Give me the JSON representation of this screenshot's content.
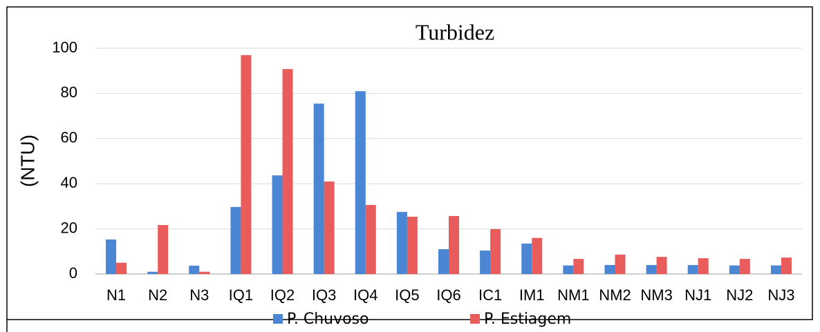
{
  "chart_data": {
    "type": "bar",
    "title": "Turbidez",
    "y_label": "(NTU)",
    "categories": [
      "N1",
      "N2",
      "N3",
      "IQ1",
      "IQ2",
      "IQ3",
      "IQ4",
      "IQ5",
      "IQ6",
      "IC1",
      "IM1",
      "NM1",
      "NM2",
      "NM3",
      "NJ1",
      "NJ2",
      "NJ3"
    ],
    "series": [
      {
        "name": "P. Chuvoso",
        "color": "#4a86d4",
        "values": [
          15.3,
          1,
          3.7,
          29.7,
          43.7,
          75.5,
          81,
          27.5,
          11,
          10.4,
          13.5,
          3.8,
          4,
          4,
          4,
          3.8,
          3.8
        ]
      },
      {
        "name": "P. Estiagem",
        "color": "#e85c5c",
        "values": [
          5,
          21.7,
          1,
          97,
          90.8,
          41,
          30.6,
          25.4,
          25.7,
          19.9,
          16,
          6.7,
          8.6,
          7.6,
          7,
          6.7,
          7.3
        ]
      }
    ],
    "ylim": [
      0,
      100
    ],
    "yticks": [
      0,
      20,
      40,
      60,
      80,
      100
    ],
    "grid": true,
    "legend": "bottom"
  }
}
